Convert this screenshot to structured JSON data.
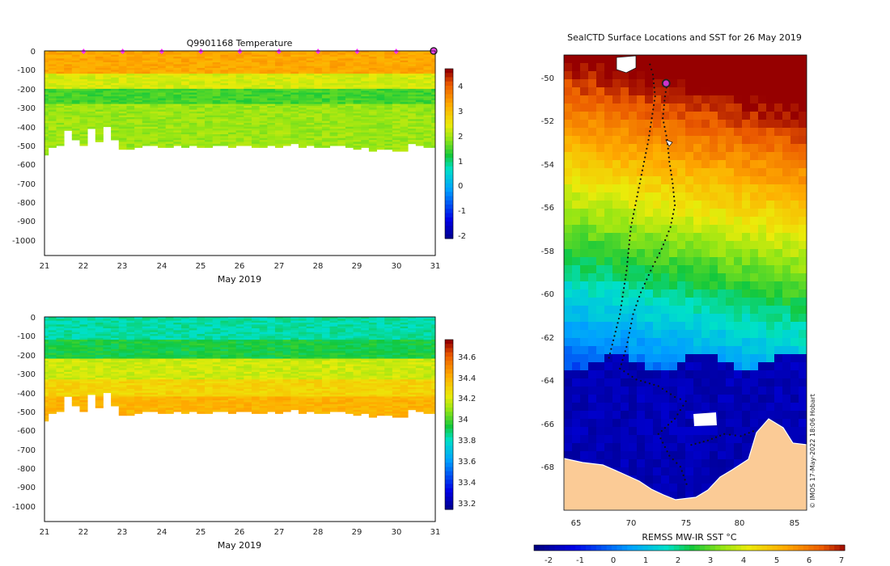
{
  "chart_data": [
    {
      "type": "heatmap",
      "title": "Q9901168  Temperature",
      "xlabel": "May 2019",
      "ylabel": "",
      "x_ticks": [
        "21",
        "22",
        "23",
        "24",
        "25",
        "26",
        "27",
        "28",
        "29",
        "30",
        "31"
      ],
      "xlim": [
        21,
        31
      ],
      "y_ticks": [
        "0",
        "-100",
        "-200",
        "-300",
        "-400",
        "-500",
        "-600",
        "-700",
        "-800",
        "-900",
        "-1000"
      ],
      "ylim": [
        -1080,
        0
      ],
      "colorbar": {
        "ticks": [
          "4",
          "3",
          "2",
          "1",
          "0",
          "-1",
          "-2"
        ],
        "range": [
          -2.2,
          4.9
        ]
      },
      "profile_markers": [
        22,
        23,
        24,
        25,
        26,
        27,
        28,
        29,
        30
      ],
      "current_marker": 31,
      "profile_days": [
        21.0,
        21.2,
        21.4,
        21.6,
        21.8,
        22.0,
        22.2,
        22.4,
        22.6,
        22.8,
        23.0,
        23.2,
        23.4,
        23.6,
        23.8,
        24.0,
        24.2,
        24.4,
        24.6,
        24.8,
        25.0,
        25.2,
        25.4,
        25.6,
        25.8,
        26.0,
        26.2,
        26.4,
        26.6,
        26.8,
        27.0,
        27.2,
        27.4,
        27.6,
        27.8,
        28.0,
        28.2,
        28.4,
        28.6,
        28.8,
        29.0,
        29.2,
        29.4,
        29.6,
        29.8,
        30.0,
        30.2,
        30.4,
        30.6,
        30.8,
        31.0
      ],
      "max_depth_m": [
        550,
        510,
        500,
        420,
        470,
        500,
        410,
        480,
        400,
        470,
        520,
        520,
        510,
        500,
        500,
        510,
        510,
        500,
        510,
        500,
        510,
        510,
        500,
        500,
        510,
        500,
        500,
        510,
        510,
        500,
        510,
        500,
        490,
        510,
        500,
        510,
        510,
        500,
        500,
        510,
        520,
        510,
        530,
        520,
        520,
        530,
        530,
        490,
        500,
        510,
        510
      ],
      "bands": [
        {
          "depth_range": [
            0,
            120
          ],
          "value": 3.5
        },
        {
          "depth_range": [
            120,
            200
          ],
          "value": 2.5
        },
        {
          "depth_range": [
            200,
            280
          ],
          "value": 1.6
        },
        {
          "depth_range": [
            280,
            550
          ],
          "value": 2.1
        }
      ]
    },
    {
      "type": "heatmap",
      "title": "",
      "xlabel": "May 2019",
      "ylabel": "",
      "x_ticks": [
        "21",
        "22",
        "23",
        "24",
        "25",
        "26",
        "27",
        "28",
        "29",
        "30",
        "31"
      ],
      "xlim": [
        21,
        31
      ],
      "y_ticks": [
        "0",
        "-100",
        "-200",
        "-300",
        "-400",
        "-500",
        "-600",
        "-700",
        "-800",
        "-900",
        "-1000"
      ],
      "ylim": [
        -1080,
        0
      ],
      "colorbar": {
        "ticks": [
          "34.6",
          "34.4",
          "34.2",
          "34",
          "33.8",
          "33.6",
          "33.4",
          "33.2"
        ],
        "range": [
          33.12,
          34.78
        ]
      },
      "bands": [
        {
          "depth_range": [
            0,
            120
          ],
          "value": 33.85
        },
        {
          "depth_range": [
            120,
            220
          ],
          "value": 33.95
        },
        {
          "depth_range": [
            220,
            330
          ],
          "value": 34.2
        },
        {
          "depth_range": [
            330,
            420
          ],
          "value": 34.32
        },
        {
          "depth_range": [
            420,
            550
          ],
          "value": 34.42
        }
      ]
    },
    {
      "type": "map",
      "title": "SealCTD Surface Locations and SST for 26 May 2019",
      "x_ticks": [
        "65",
        "70",
        "75",
        "80",
        "85"
      ],
      "xlim": [
        63.9,
        86.0
      ],
      "y_ticks": [
        "-50",
        "-52",
        "-54",
        "-56",
        "-58",
        "-60",
        "-62",
        "-64",
        "-66",
        "-68"
      ],
      "ylim": [
        -70.0,
        -49.1
      ],
      "colorbar": {
        "label": "REMSS MW-IR SST °C",
        "ticks": [
          "-2",
          "-1",
          "0",
          "1",
          "2",
          "3",
          "4",
          "5",
          "6",
          "7"
        ],
        "range": [
          -2.5,
          7.2
        ]
      },
      "current_position": {
        "lon": 73.2,
        "lat": -50.4
      },
      "track": {
        "track_west": [
          [
            68.0,
            -63.0
          ],
          [
            68.5,
            -62.0
          ],
          [
            69.0,
            -61.0
          ],
          [
            69.3,
            -60.0
          ],
          [
            69.6,
            -59.0
          ],
          [
            69.8,
            -58.0
          ],
          [
            70.0,
            -57.0
          ],
          [
            70.4,
            -56.0
          ],
          [
            70.8,
            -55.0
          ],
          [
            71.2,
            -54.0
          ],
          [
            71.6,
            -53.0
          ],
          [
            71.9,
            -52.0
          ],
          [
            72.2,
            -51.0
          ],
          [
            72.0,
            -50.0
          ],
          [
            71.6,
            -49.3
          ]
        ],
        "track_east": [
          [
            69.0,
            -63.5
          ],
          [
            69.6,
            -62.5
          ],
          [
            70.2,
            -61.0
          ],
          [
            70.9,
            -60.0
          ],
          [
            71.8,
            -59.0
          ],
          [
            72.8,
            -58.0
          ],
          [
            73.6,
            -57.0
          ],
          [
            74.0,
            -56.0
          ],
          [
            73.8,
            -55.0
          ],
          [
            73.5,
            -54.0
          ],
          [
            73.3,
            -53.0
          ],
          [
            72.9,
            -52.0
          ],
          [
            73.1,
            -51.0
          ],
          [
            73.3,
            -50.4
          ]
        ],
        "track_south": [
          [
            69.0,
            -63.5
          ],
          [
            70.5,
            -64.0
          ],
          [
            72.5,
            -64.3
          ],
          [
            74.0,
            -64.8
          ],
          [
            75.0,
            -65.0
          ],
          [
            74.0,
            -65.8
          ],
          [
            72.5,
            -66.5
          ],
          [
            73.5,
            -67.5
          ],
          [
            74.5,
            -68.0
          ],
          [
            75.2,
            -69.0
          ]
        ],
        "track_coast": [
          [
            75.5,
            -67.0
          ],
          [
            77.0,
            -66.8
          ],
          [
            78.5,
            -66.5
          ],
          [
            80.0,
            -66.6
          ],
          [
            81.5,
            -66.3
          ]
        ]
      },
      "credit": "© IMOS 17-May-2022 18:06 Hobart"
    }
  ]
}
